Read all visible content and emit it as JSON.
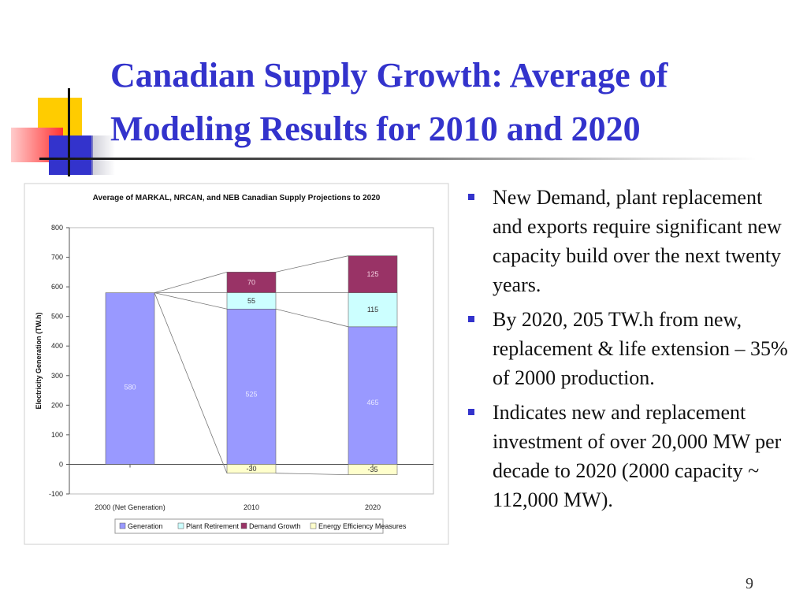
{
  "title": "Canadian Supply Growth: Average of Modeling Results for 2010 and 2020",
  "colors": {
    "title": "#3333cc",
    "generation": "#9999ff",
    "plant_retirement": "#ccffff",
    "demand_growth": "#993366",
    "energy_efficiency": "#ffffcc",
    "bullet": "#3333cc"
  },
  "bullets": [
    "New Demand, plant replacement and exports require significant new capacity build over the next twenty years.",
    "By 2020, 205 TW.h from new, replacement & life extension – 35% of 2000 production.",
    "Indicates new and replacement investment of over 20,000 MW per decade to 2020 (2000 capacity ~ 112,000 MW)."
  ],
  "slide_number": "9",
  "chart_data": {
    "type": "bar",
    "stacked": true,
    "title": "Average of MARKAL, NRCAN, and NEB Canadian Supply Projections to 2020",
    "xlabel": "",
    "ylabel": "Electricity Generation (TW.h)",
    "ylim": [
      -100,
      800
    ],
    "yticks": [
      800,
      700,
      600,
      500,
      400,
      300,
      200,
      100,
      0,
      -100
    ],
    "categories": [
      "2000 (Net Generation)",
      "2010",
      "2020"
    ],
    "series": [
      {
        "name": "Generation",
        "values": [
          580,
          525,
          465
        ]
      },
      {
        "name": "Plant Retirement",
        "values": [
          0,
          55,
          115
        ]
      },
      {
        "name": "Demand Growth",
        "values": [
          0,
          70,
          125
        ]
      },
      {
        "name": "Energy Efficiency Measures",
        "values": [
          0,
          -30,
          -35
        ]
      }
    ],
    "data_labels": [
      [
        "580",
        "",
        "",
        ""
      ],
      [
        "525",
        "55",
        "70",
        "-30"
      ],
      [
        "465",
        "115",
        "125",
        "-35"
      ]
    ],
    "legend_position": "bottom",
    "grid": false
  }
}
